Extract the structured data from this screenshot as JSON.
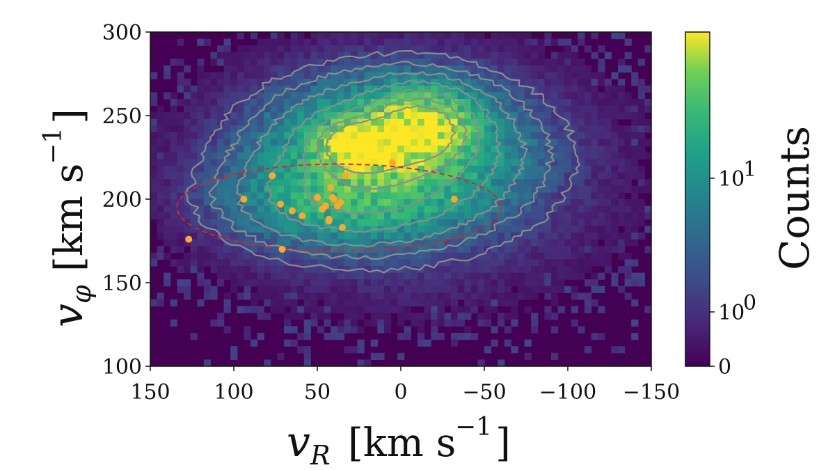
{
  "chart_data": {
    "type": "heatmap",
    "title": "",
    "xlabel": "v_R [km s^-1]",
    "ylabel": "v_φ [km s^-1]",
    "xlabel_parts": {
      "var": "v",
      "sub": "R",
      "unit": "[km s",
      "exp": "−1",
      "close": "]"
    },
    "ylabel_parts": {
      "var": "v",
      "sub": "φ",
      "unit": "[km s",
      "exp": "−1",
      "close": "]"
    },
    "xlim": [
      150,
      -150
    ],
    "ylim": [
      100,
      300
    ],
    "x_ticks": [
      150,
      100,
      50,
      0,
      -50,
      -100,
      -150
    ],
    "x_tick_labels": [
      "150",
      "100",
      "50",
      "0",
      "−50",
      "−100",
      "−150"
    ],
    "y_ticks": [
      100,
      150,
      200,
      250,
      300
    ],
    "y_tick_labels": [
      "100",
      "150",
      "200",
      "250",
      "300"
    ],
    "colorbar": {
      "label": "Counts",
      "scale": "symlog",
      "ticks": [
        0,
        1,
        10
      ],
      "tick_labels": [
        {
          "base": "0",
          "exp": ""
        },
        {
          "base": "10",
          "exp": "0"
        },
        {
          "base": "10",
          "exp": "1"
        }
      ],
      "max": 70
    },
    "density_model": {
      "peak_counts": 70,
      "components": [
        {
          "vR": 25,
          "vphi": 232,
          "sigma_vR": 14,
          "sigma_vphi": 9,
          "weight": 1.0
        },
        {
          "vR": -12,
          "vphi": 243,
          "sigma_vR": 18,
          "sigma_vphi": 13,
          "weight": 0.8
        },
        {
          "vR": 5,
          "vphi": 228,
          "sigma_vR": 40,
          "sigma_vphi": 22,
          "weight": 0.45
        },
        {
          "vR": 35,
          "vphi": 200,
          "sigma_vR": 38,
          "sigma_vphi": 16,
          "weight": 0.22
        },
        {
          "vR": 0,
          "vphi": 215,
          "sigma_vR": 70,
          "sigma_vphi": 42,
          "weight": 0.035
        }
      ]
    },
    "ellipse": {
      "center": [
        37,
        195
      ],
      "semi_axis_vR": 97,
      "semi_axis_vphi": 26,
      "color": "#d62728",
      "style": "dashed"
    },
    "points": {
      "color": "#ffa726",
      "vR": [
        127,
        94,
        77,
        71,
        72,
        65,
        59,
        50,
        47,
        50,
        45,
        43,
        41,
        42,
        40,
        43,
        38,
        36,
        35,
        33,
        5,
        -32
      ],
      "vphi": [
        176,
        200,
        214,
        170,
        197,
        193,
        190,
        201,
        194,
        201,
        196,
        188,
        201,
        207,
        200,
        187,
        196,
        198,
        183,
        214,
        222,
        200
      ]
    },
    "contour_color": "#8c8c8c",
    "colormap": "viridis"
  }
}
